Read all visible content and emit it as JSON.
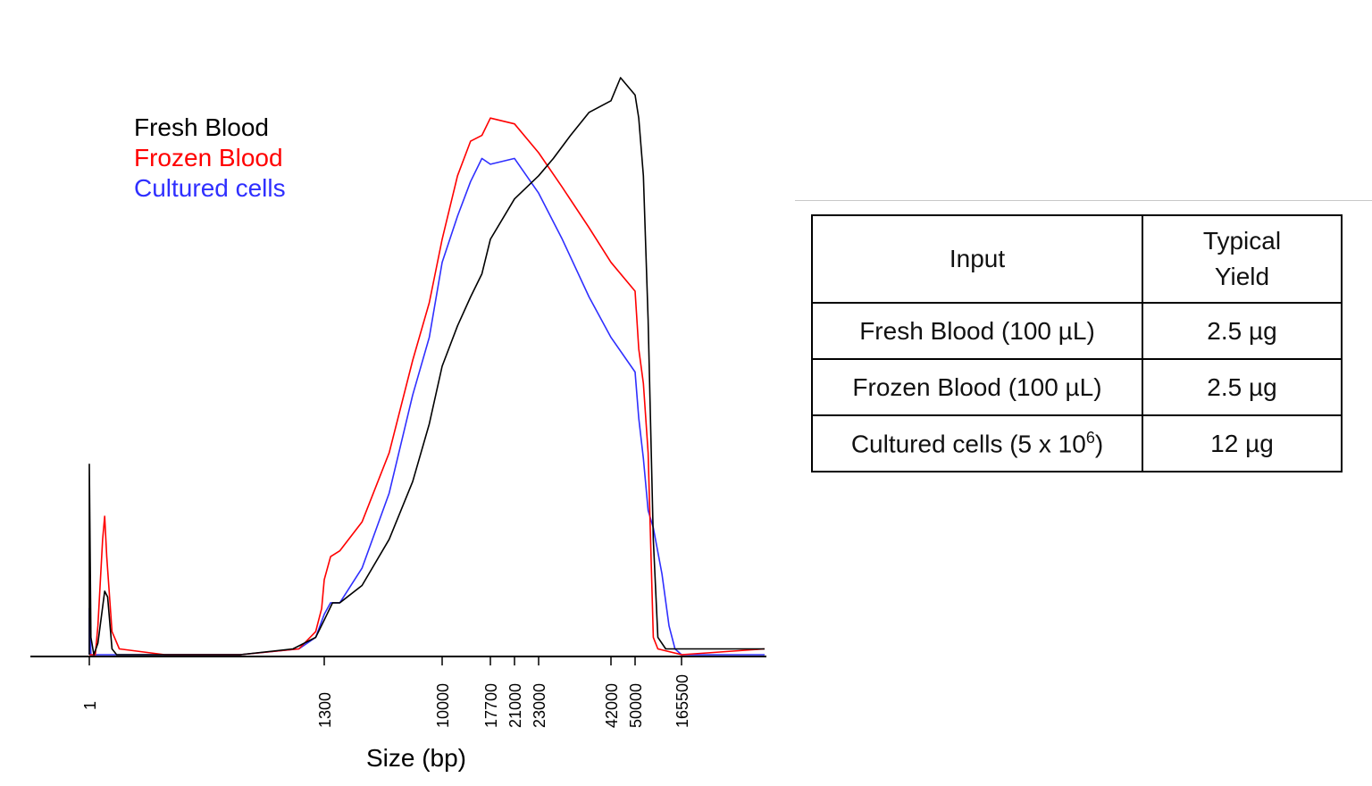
{
  "chart_data": {
    "type": "line",
    "title": "",
    "xlabel": "Size (bp)",
    "ylabel": "",
    "x_scale": "log",
    "x_ticks": [
      "1",
      "1300",
      "10000",
      "17700",
      "21000",
      "23000",
      "42000",
      "50000",
      "165500"
    ],
    "grid": false,
    "legend_position": "top-left",
    "y_range": [
      0,
      100
    ],
    "series": [
      {
        "name": "Fresh Blood",
        "color": "#000000",
        "points": [
          [
            1,
            0
          ],
          [
            1,
            33
          ],
          [
            1.05,
            3
          ],
          [
            1.15,
            0
          ],
          [
            1.3,
            2
          ],
          [
            1.6,
            11
          ],
          [
            1.75,
            10
          ],
          [
            2,
            1
          ],
          [
            2.3,
            0
          ],
          [
            10,
            0
          ],
          [
            100,
            0
          ],
          [
            500,
            1
          ],
          [
            1000,
            3
          ],
          [
            1300,
            6
          ],
          [
            1500,
            9
          ],
          [
            1700,
            9
          ],
          [
            2500,
            12
          ],
          [
            4000,
            20
          ],
          [
            6000,
            30
          ],
          [
            8000,
            40
          ],
          [
            10000,
            50
          ],
          [
            12000,
            57
          ],
          [
            14000,
            62
          ],
          [
            16000,
            66
          ],
          [
            17700,
            72
          ],
          [
            21000,
            79
          ],
          [
            23000,
            83
          ],
          [
            26000,
            86
          ],
          [
            30000,
            90
          ],
          [
            35000,
            94
          ],
          [
            42000,
            96
          ],
          [
            45000,
            100
          ],
          [
            50000,
            97
          ],
          [
            55000,
            93
          ],
          [
            62000,
            83
          ],
          [
            70000,
            58
          ],
          [
            80000,
            20
          ],
          [
            90000,
            3
          ],
          [
            110000,
            1
          ],
          [
            165500,
            1
          ],
          [
            500000,
            1
          ]
        ]
      },
      {
        "name": "Frozen Blood",
        "color": "#ff0000",
        "points": [
          [
            1,
            0
          ],
          [
            1.2,
            0
          ],
          [
            1.3,
            5
          ],
          [
            1.5,
            20
          ],
          [
            1.6,
            24
          ],
          [
            1.7,
            17
          ],
          [
            2,
            4
          ],
          [
            2.5,
            1
          ],
          [
            10,
            0
          ],
          [
            100,
            0
          ],
          [
            600,
            1
          ],
          [
            1000,
            4
          ],
          [
            1200,
            8
          ],
          [
            1300,
            13
          ],
          [
            1450,
            17
          ],
          [
            1700,
            18
          ],
          [
            2500,
            23
          ],
          [
            4000,
            35
          ],
          [
            6000,
            51
          ],
          [
            8000,
            61
          ],
          [
            10000,
            72
          ],
          [
            12000,
            83
          ],
          [
            14000,
            89
          ],
          [
            16000,
            90
          ],
          [
            17700,
            93
          ],
          [
            21000,
            92
          ],
          [
            23000,
            87
          ],
          [
            28000,
            81
          ],
          [
            35000,
            74
          ],
          [
            42000,
            68
          ],
          [
            50000,
            63
          ],
          [
            55000,
            53
          ],
          [
            62000,
            47
          ],
          [
            70000,
            35
          ],
          [
            80000,
            3
          ],
          [
            90000,
            1
          ],
          [
            165500,
            0
          ],
          [
            500000,
            1
          ]
        ]
      },
      {
        "name": "Cultured cells",
        "color": "#2f2fff",
        "points": [
          [
            1,
            0
          ],
          [
            1,
            8
          ],
          [
            1.05,
            0
          ],
          [
            1.5,
            0
          ],
          [
            3,
            0
          ],
          [
            10,
            0
          ],
          [
            100,
            0
          ],
          [
            600,
            1
          ],
          [
            1000,
            3
          ],
          [
            1300,
            7
          ],
          [
            1450,
            9
          ],
          [
            1700,
            9
          ],
          [
            2500,
            15
          ],
          [
            4000,
            28
          ],
          [
            6000,
            45
          ],
          [
            8000,
            55
          ],
          [
            10000,
            68
          ],
          [
            12000,
            76
          ],
          [
            14000,
            82
          ],
          [
            16000,
            86
          ],
          [
            17700,
            85
          ],
          [
            21000,
            86
          ],
          [
            23000,
            80
          ],
          [
            28000,
            72
          ],
          [
            35000,
            62
          ],
          [
            42000,
            55
          ],
          [
            50000,
            49
          ],
          [
            55000,
            41
          ],
          [
            62000,
            34
          ],
          [
            70000,
            25
          ],
          [
            80000,
            22
          ],
          [
            100000,
            14
          ],
          [
            120000,
            5
          ],
          [
            140000,
            1
          ],
          [
            165500,
            0
          ],
          [
            500000,
            0
          ]
        ]
      }
    ]
  },
  "legend": [
    {
      "label": "Fresh Blood",
      "color": "#000000"
    },
    {
      "label": "Frozen Blood",
      "color": "#ff0000"
    },
    {
      "label": "Cultured cells",
      "color": "#2f2fff"
    }
  ],
  "table": {
    "headers": [
      "Input",
      "Typical",
      "Yield"
    ],
    "rows": [
      {
        "input": "Fresh Blood (100 µL)",
        "yield": "2.5 µg"
      },
      {
        "input": "Frozen Blood (100 µL)",
        "yield": "2.5 µg"
      },
      {
        "input": "Cultured cells (5 x 10",
        "input_sup": "6",
        "input_end": ")",
        "yield": "12 µg"
      }
    ]
  }
}
